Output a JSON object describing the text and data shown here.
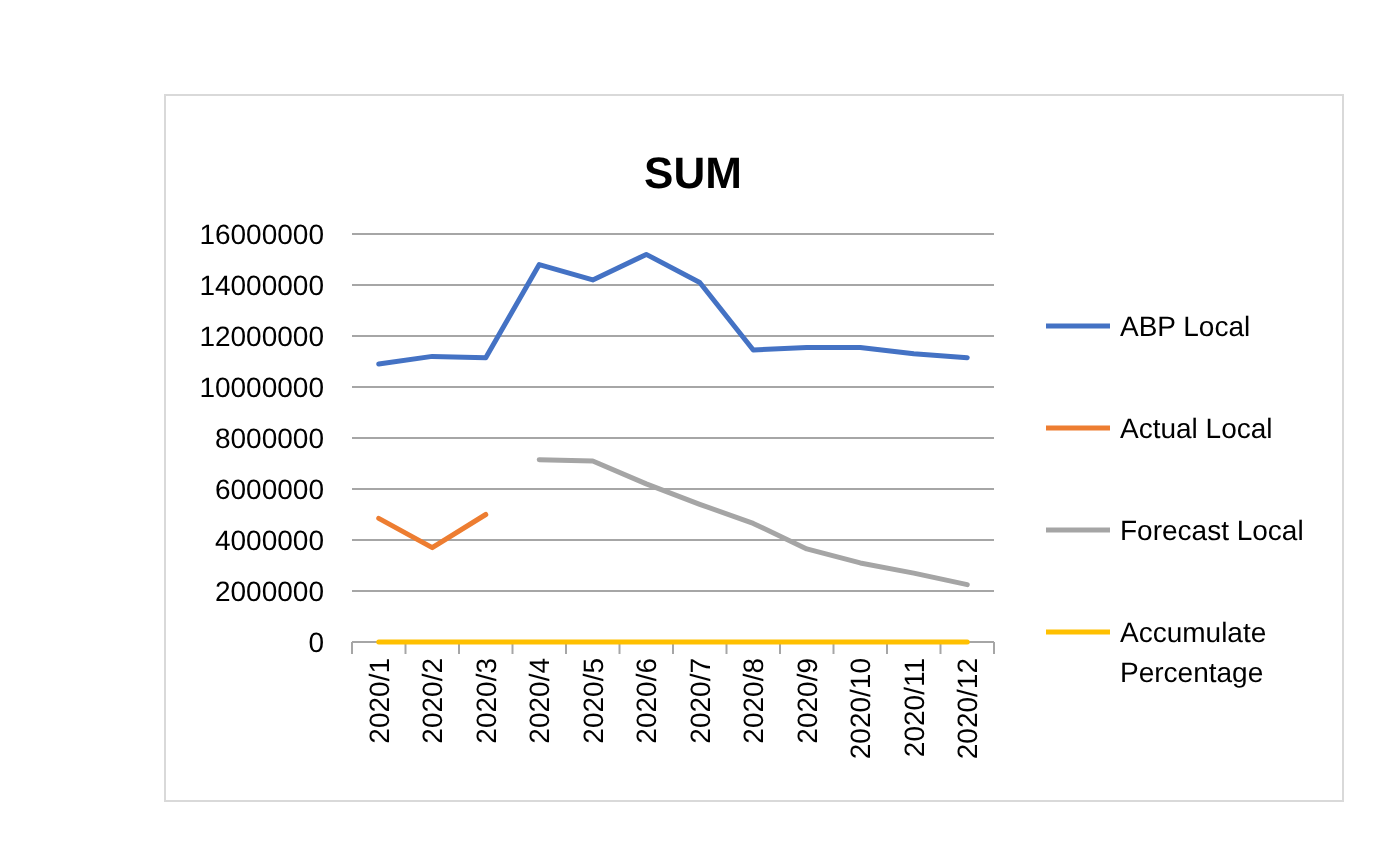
{
  "chart_data": {
    "type": "line",
    "title": "SUM",
    "categories": [
      "2020/1",
      "2020/2",
      "2020/3",
      "2020/4",
      "2020/5",
      "2020/6",
      "2020/7",
      "2020/8",
      "2020/9",
      "2020/10",
      "2020/11",
      "2020/12"
    ],
    "series": [
      {
        "name": "ABP Local",
        "color": "#4472c4",
        "values": [
          10900000,
          11200000,
          11150000,
          14800000,
          14200000,
          15200000,
          14100000,
          11450000,
          11550000,
          11550000,
          11300000,
          11150000
        ]
      },
      {
        "name": "Actual Local",
        "color": "#ed7d31",
        "values": [
          4850000,
          3700000,
          5000000,
          null,
          null,
          null,
          null,
          null,
          null,
          null,
          null,
          null
        ]
      },
      {
        "name": "Forecast Local",
        "color": "#a5a5a5",
        "values": [
          null,
          null,
          null,
          7150000,
          7100000,
          6200000,
          5400000,
          4650000,
          3650000,
          3100000,
          2700000,
          2250000
        ]
      },
      {
        "name": "Accumulate Percentage",
        "color": "#ffc000",
        "values": [
          0,
          0,
          0,
          0,
          0,
          0,
          0,
          0,
          0,
          0,
          0,
          0
        ]
      }
    ],
    "ylim": [
      0,
      16000000
    ],
    "yticks": [
      0,
      2000000,
      4000000,
      6000000,
      8000000,
      10000000,
      12000000,
      14000000,
      16000000
    ],
    "grid": "y",
    "legend": "right",
    "marker": "none",
    "line_style": "solid"
  }
}
